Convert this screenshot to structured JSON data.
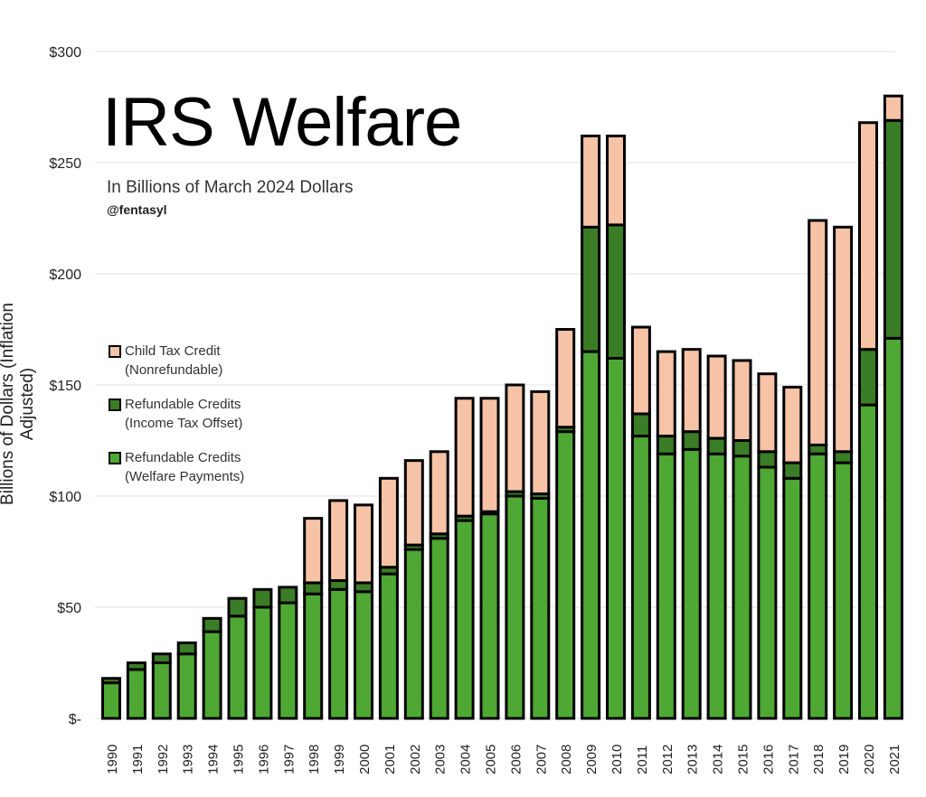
{
  "chart_data": {
    "type": "bar",
    "stacked": true,
    "title": "IRS Welfare",
    "subtitle": "In Billions of March 2024 Dollars",
    "credit": "@fentasyl",
    "xlabel": "",
    "ylabel": "Billions of Dollars (Inflation Adjusted)",
    "ylim": [
      0,
      300
    ],
    "yticks": [
      0,
      50,
      100,
      150,
      200,
      250,
      300
    ],
    "ytick_labels": [
      "$-",
      "$50",
      "$100",
      "$150",
      "$200",
      "$250",
      "$300"
    ],
    "grid": true,
    "legend_position": "left-middle",
    "categories": [
      "1990",
      "1991",
      "1992",
      "1993",
      "1994",
      "1995",
      "1996",
      "1997",
      "1998",
      "1999",
      "2000",
      "2001",
      "2002",
      "2003",
      "2004",
      "2005",
      "2006",
      "2007",
      "2008",
      "2009",
      "2010",
      "2011",
      "2012",
      "2013",
      "2014",
      "2015",
      "2016",
      "2017",
      "2018",
      "2019",
      "2020",
      "2021"
    ],
    "series": [
      {
        "name": "Refundable Credits (Welfare Payments)",
        "label1": "Refundable Credits",
        "label2": "(Welfare Payments)",
        "color": "#4ea833",
        "values": [
          16,
          22,
          25,
          29,
          39,
          46,
          50,
          52,
          56,
          58,
          57,
          65,
          76,
          81,
          89,
          92,
          100,
          99,
          129,
          165,
          162,
          127,
          119,
          121,
          119,
          118,
          113,
          108,
          119,
          115,
          141,
          171
        ]
      },
      {
        "name": "Refundable Credits (Income Tax Offset)",
        "label1": "Refundable Credits",
        "label2": "(Income Tax Offset)",
        "color": "#3a7d26",
        "values": [
          2,
          3,
          4,
          5,
          6,
          8,
          8,
          7,
          5,
          4,
          4,
          3,
          2,
          2,
          2,
          1,
          2,
          2,
          2,
          56,
          60,
          10,
          8,
          8,
          7,
          7,
          7,
          7,
          4,
          5,
          25,
          98
        ]
      },
      {
        "name": "Child Tax Credit (Nonrefundable)",
        "label1": "Child Tax Credit",
        "label2": "(Nonrefundable)",
        "color": "#f6c3a6",
        "values": [
          0,
          0,
          0,
          0,
          0,
          0,
          0,
          0,
          29,
          36,
          35,
          40,
          38,
          37,
          53,
          51,
          48,
          46,
          44,
          41,
          40,
          39,
          38,
          37,
          37,
          36,
          35,
          34,
          101,
          101,
          102,
          11
        ]
      }
    ]
  }
}
